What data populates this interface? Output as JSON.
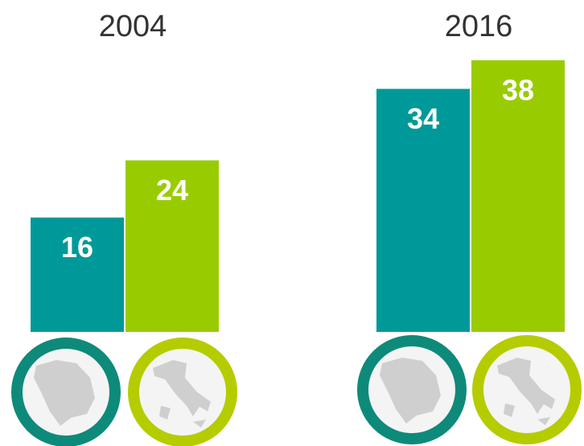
{
  "chart_data": {
    "type": "bar",
    "categories": [
      "2004",
      "2016"
    ],
    "series": [
      {
        "color": "#009999",
        "values": [
          16,
          34
        ]
      },
      {
        "color": "#99cc00",
        "values": [
          24,
          38
        ]
      }
    ]
  }
}
